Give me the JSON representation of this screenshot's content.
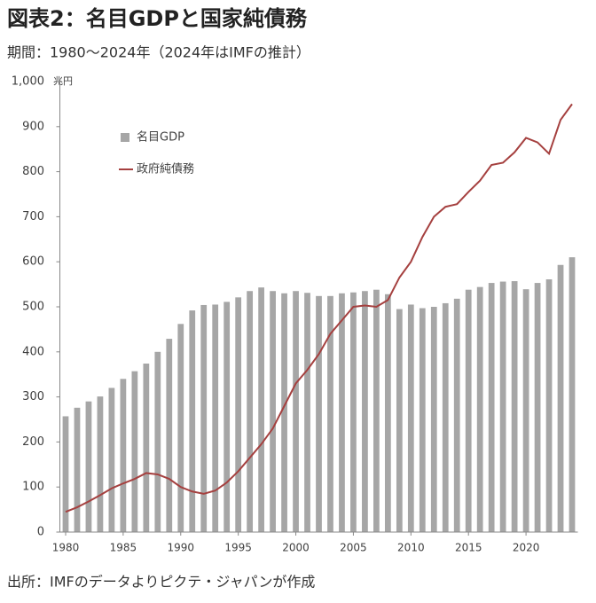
{
  "chart_data": {
    "type": "bar-line",
    "title": "図表2：名目GDPと国家純債務",
    "subtitle": "期間：1980～2024年（2024年はIMFの推計）",
    "source": "出所：IMFのデータよりピクテ・ジャパンが作成",
    "y_unit": "兆円",
    "x": [
      1980,
      1981,
      1982,
      1983,
      1984,
      1985,
      1986,
      1987,
      1988,
      1989,
      1990,
      1991,
      1992,
      1993,
      1994,
      1995,
      1996,
      1997,
      1998,
      1999,
      2000,
      2001,
      2002,
      2003,
      2004,
      2005,
      2006,
      2007,
      2008,
      2009,
      2010,
      2011,
      2012,
      2013,
      2014,
      2015,
      2016,
      2017,
      2018,
      2019,
      2020,
      2021,
      2022,
      2023,
      2024
    ],
    "xlim": [
      1979.5,
      2024.5
    ],
    "xticks": [
      1980,
      1985,
      1990,
      1995,
      2000,
      2005,
      2010,
      2015,
      2020
    ],
    "ylim": [
      0,
      1000
    ],
    "yticks": [
      0,
      100,
      200,
      300,
      400,
      500,
      600,
      700,
      800,
      900,
      {
        "value": 1000,
        "label": "1,000"
      }
    ],
    "legend": "upper left",
    "series": [
      {
        "name": "名目GDP",
        "type": "bar",
        "color": "#a6a6a6",
        "values": [
          257,
          276,
          290,
          301,
          320,
          340,
          357,
          374,
          400,
          429,
          462,
          492,
          504,
          505,
          511,
          521,
          535,
          543,
          535,
          530,
          535,
          531,
          524,
          524,
          530,
          532,
          535,
          538,
          528,
          495,
          505,
          497,
          500,
          508,
          518,
          538,
          544,
          553,
          556,
          557,
          539,
          553,
          561,
          593,
          610
        ]
      },
      {
        "name": "政府純債務",
        "type": "line",
        "color": "#a5403f",
        "values": [
          45,
          55,
          68,
          82,
          97,
          108,
          118,
          131,
          128,
          118,
          100,
          90,
          85,
          92,
          110,
          135,
          165,
          195,
          230,
          280,
          330,
          360,
          395,
          440,
          470,
          500,
          503,
          500,
          515,
          565,
          600,
          655,
          700,
          722,
          728,
          755,
          780,
          815,
          820,
          843,
          875,
          865,
          840,
          915,
          950
        ]
      }
    ]
  }
}
